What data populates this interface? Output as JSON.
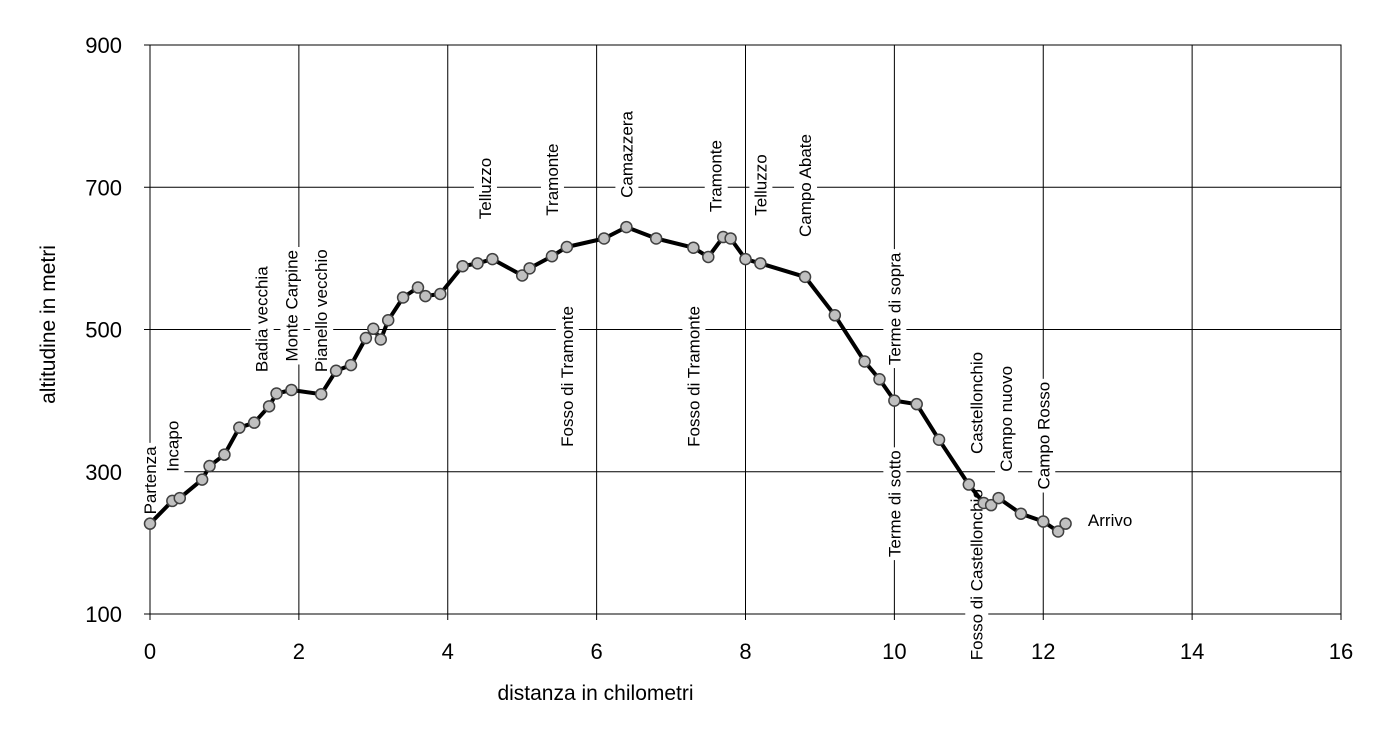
{
  "chart_data": {
    "type": "line",
    "title": "",
    "xlabel": "distanza in chilometri",
    "ylabel": "altitudine  in metri",
    "xlim": [
      0,
      16
    ],
    "ylim": [
      100,
      900
    ],
    "x_ticks": [
      "0",
      "2",
      "4",
      "6",
      "8",
      "10",
      "12",
      "14",
      "16"
    ],
    "y_ticks": [
      "100",
      "300",
      "500",
      "700",
      "900"
    ],
    "grid": true,
    "legend": "none",
    "line_color": "#000000",
    "marker_fill": "#c0c0c0",
    "marker_stroke": "#404040",
    "series": [
      {
        "points": [
          [
            0.0,
            227
          ],
          [
            0.3,
            259
          ],
          [
            0.4,
            263
          ],
          [
            0.7,
            289
          ],
          [
            0.8,
            308
          ],
          [
            1.0,
            324
          ],
          [
            1.2,
            362
          ],
          [
            1.4,
            369
          ],
          [
            1.6,
            392
          ],
          [
            1.7,
            410
          ],
          [
            1.9,
            415
          ],
          [
            2.3,
            409
          ],
          [
            2.5,
            442
          ],
          [
            2.7,
            450
          ],
          [
            2.9,
            488
          ],
          [
            3.0,
            501
          ],
          [
            3.1,
            486
          ],
          [
            3.2,
            513
          ],
          [
            3.4,
            545
          ],
          [
            3.6,
            559
          ],
          [
            3.7,
            547
          ],
          [
            3.9,
            550
          ],
          [
            4.2,
            589
          ],
          [
            4.4,
            593
          ],
          [
            4.6,
            599
          ],
          [
            5.0,
            576
          ],
          [
            5.1,
            586
          ],
          [
            5.4,
            603
          ],
          [
            5.6,
            616
          ],
          [
            6.1,
            628
          ],
          [
            6.4,
            644
          ],
          [
            6.8,
            628
          ],
          [
            7.3,
            615
          ],
          [
            7.5,
            602
          ],
          [
            7.7,
            630
          ],
          [
            7.8,
            628
          ],
          [
            8.0,
            599
          ],
          [
            8.2,
            593
          ],
          [
            8.8,
            574
          ],
          [
            9.2,
            520
          ],
          [
            9.6,
            455
          ],
          [
            9.8,
            430
          ],
          [
            10.0,
            400
          ],
          [
            10.3,
            395
          ],
          [
            10.6,
            345
          ],
          [
            11.0,
            282
          ],
          [
            11.2,
            256
          ],
          [
            11.3,
            253
          ],
          [
            11.4,
            263
          ],
          [
            11.7,
            241
          ],
          [
            12.0,
            230
          ],
          [
            12.2,
            216
          ],
          [
            12.3,
            227
          ]
        ]
      }
    ],
    "annotations": [
      {
        "text": "Partenza",
        "x": 0.0,
        "y": 240,
        "rotated": true
      },
      {
        "text": "Incapo",
        "x": 0.3,
        "y": 300,
        "rotated": true
      },
      {
        "text": "Badia vecchia",
        "x": 1.5,
        "y": 440,
        "rotated": true
      },
      {
        "text": "Monte Carpine",
        "x": 1.9,
        "y": 455,
        "rotated": true
      },
      {
        "text": "Pianello vecchio",
        "x": 2.3,
        "y": 440,
        "rotated": true
      },
      {
        "text": "Telluzzo",
        "x": 4.5,
        "y": 655,
        "rotated": true
      },
      {
        "text": "Tramonte",
        "x": 5.4,
        "y": 660,
        "rotated": true
      },
      {
        "text": "Fosso di Tramonte",
        "x": 5.6,
        "y": 335,
        "rotated": true
      },
      {
        "text": "Camazzera",
        "x": 6.4,
        "y": 685,
        "rotated": true
      },
      {
        "text": "Fosso di Tramonte",
        "x": 7.3,
        "y": 335,
        "rotated": true
      },
      {
        "text": "Tramonte",
        "x": 7.6,
        "y": 665,
        "rotated": true
      },
      {
        "text": "Telluzzo",
        "x": 8.2,
        "y": 660,
        "rotated": true
      },
      {
        "text": "Campo Abate",
        "x": 8.8,
        "y": 630,
        "rotated": true
      },
      {
        "text": "Terme di sopra",
        "x": 10.0,
        "y": 450,
        "rotated": true
      },
      {
        "text": "Terme di sotto",
        "x": 10.0,
        "y": 180,
        "rotated": true
      },
      {
        "text": "Castellonchio",
        "x": 11.1,
        "y": 325,
        "rotated": true
      },
      {
        "text": "Fosso di Castellonchio",
        "x": 11.1,
        "y": 35,
        "rotated": true
      },
      {
        "text": "Campo nuovo",
        "x": 11.5,
        "y": 300,
        "rotated": true
      },
      {
        "text": "Campo Rosso",
        "x": 12.0,
        "y": 275,
        "rotated": true
      },
      {
        "text": "Arrivo",
        "x": 12.6,
        "y": 232,
        "rotated": false
      }
    ]
  }
}
